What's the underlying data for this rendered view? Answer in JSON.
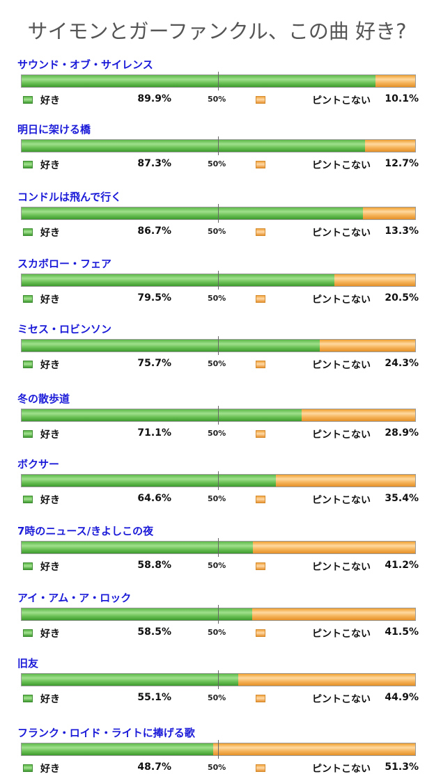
{
  "title": "サイモンとガーファンクル、この曲 好き?",
  "legend": {
    "like": "好き",
    "dislike": "ピントこない",
    "midpoint": "50%"
  },
  "colors": {
    "like": "#5cb848",
    "dislike": "#f2a74a",
    "song_title": "#1a1ad8"
  },
  "chart_data": {
    "type": "bar",
    "orientation": "horizontal-stacked-100",
    "title": "サイモンとガーファンクル、この曲 好き?",
    "categories": [
      "サウンド・オブ・サイレンス",
      "明日に架ける橋",
      "コンドルは飛んで行く",
      "スカボロー・フェア",
      "ミセス・ロビンソン",
      "冬の散歩道",
      "ボクサー",
      "7時のニュース/きよしこの夜",
      "アイ・アム・ア・ロック",
      "旧友",
      "フランク・ロイド・ライトに捧げる歌"
    ],
    "series": [
      {
        "name": "好き",
        "values": [
          89.9,
          87.3,
          86.7,
          79.5,
          75.7,
          71.1,
          64.6,
          58.8,
          58.5,
          55.1,
          48.7
        ]
      },
      {
        "name": "ピントこない",
        "values": [
          10.1,
          12.7,
          13.3,
          20.5,
          24.3,
          28.9,
          35.4,
          41.2,
          41.5,
          44.9,
          51.3
        ]
      }
    ],
    "value_labels": {
      "like": [
        "89.9%",
        "87.3%",
        "86.7%",
        "79.5%",
        "75.7%",
        "71.1%",
        "64.6%",
        "58.8%",
        "58.5%",
        "55.1%",
        "48.7%"
      ],
      "dislike": [
        "10.1%",
        "12.7%",
        "13.3%",
        "20.5%",
        "24.3%",
        "28.9%",
        "35.4%",
        "41.2%",
        "41.5%",
        "44.9%",
        "51.3%"
      ]
    },
    "xlim": [
      0,
      100
    ],
    "midline": 50
  }
}
